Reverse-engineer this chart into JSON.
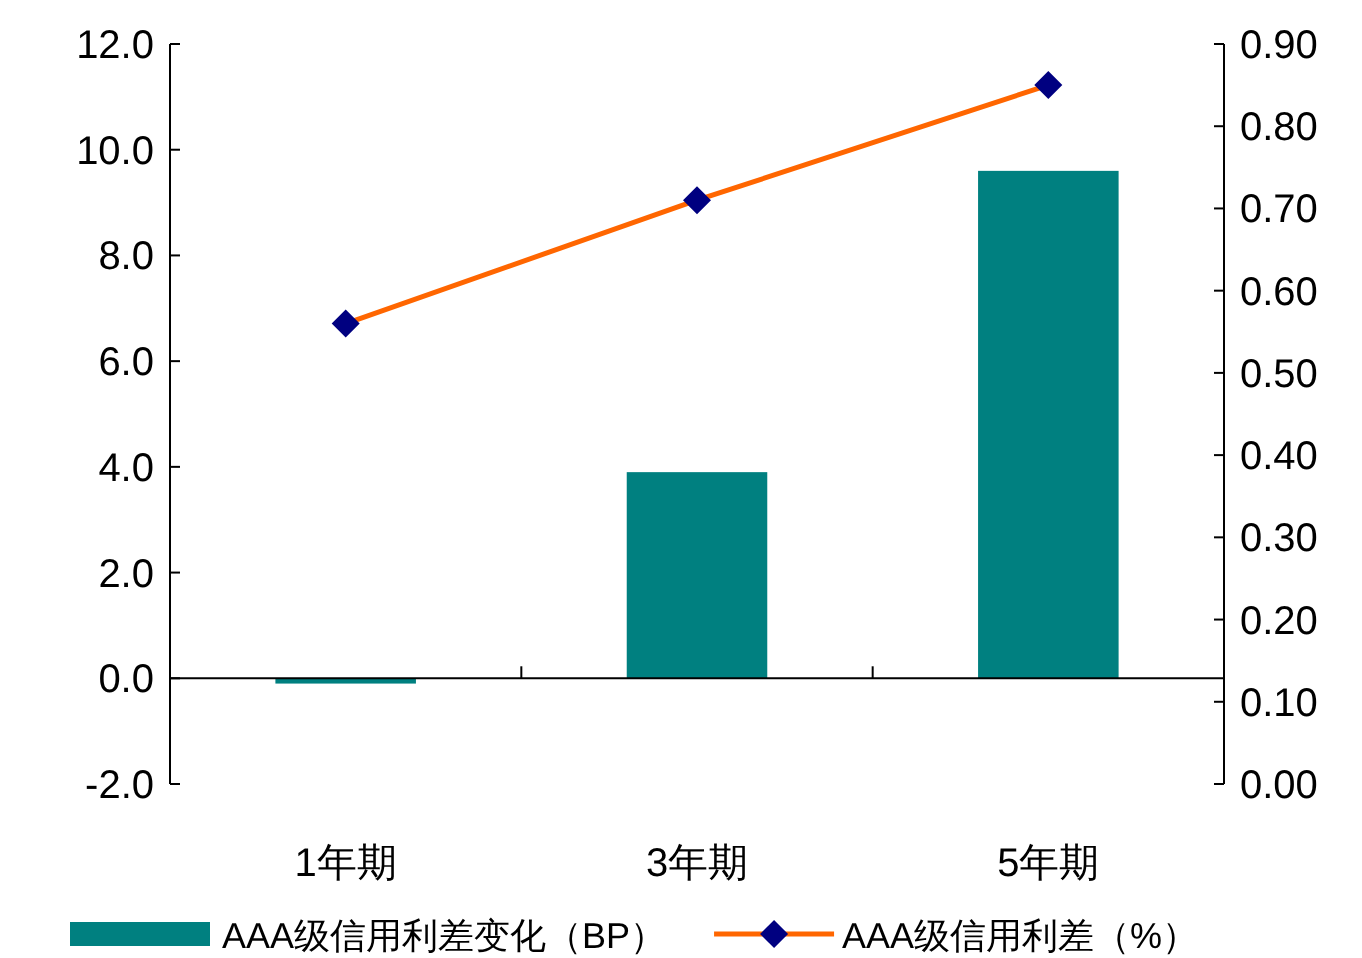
{
  "chart_data": {
    "type": "bar",
    "categories": [
      "1年期",
      "3年期",
      "5年期"
    ],
    "series": [
      {
        "name": "AAA级信用利差变化（BP）",
        "color": "#008080",
        "values": [
          -0.1,
          3.9,
          9.6
        ]
      },
      {
        "name": "AAA级信用利差（%）",
        "type": "line",
        "axis": "y2",
        "color": "#ff6600",
        "marker": "diamond",
        "values": [
          0.56,
          0.71,
          0.85
        ]
      }
    ],
    "ylim": [
      -2,
      12
    ],
    "yticks": [
      {
        "value": -2,
        "label": "-2.0"
      },
      {
        "value": 0,
        "label": "0.0"
      },
      {
        "value": 2,
        "label": "2.0"
      },
      {
        "value": 4,
        "label": "4.0"
      },
      {
        "value": 6,
        "label": "6.0"
      },
      {
        "value": 8,
        "label": "8.0"
      },
      {
        "value": 10,
        "label": "10.0"
      },
      {
        "value": 12,
        "label": "12.0"
      }
    ],
    "y2lim": [
      0,
      0.9
    ],
    "y2ticks": [
      {
        "value": 0,
        "label": "0.00"
      },
      {
        "value": 0.1,
        "label": "0.10"
      },
      {
        "value": 0.2,
        "label": "0.20"
      },
      {
        "value": 0.3,
        "label": "0.30"
      },
      {
        "value": 0.4,
        "label": "0.40"
      },
      {
        "value": 0.5,
        "label": "0.50"
      },
      {
        "value": 0.6,
        "label": "0.60"
      },
      {
        "value": 0.7,
        "label": "0.70"
      },
      {
        "value": 0.8,
        "label": "0.80"
      },
      {
        "value": 0.9,
        "label": "0.90"
      }
    ],
    "legend": "bottom"
  }
}
